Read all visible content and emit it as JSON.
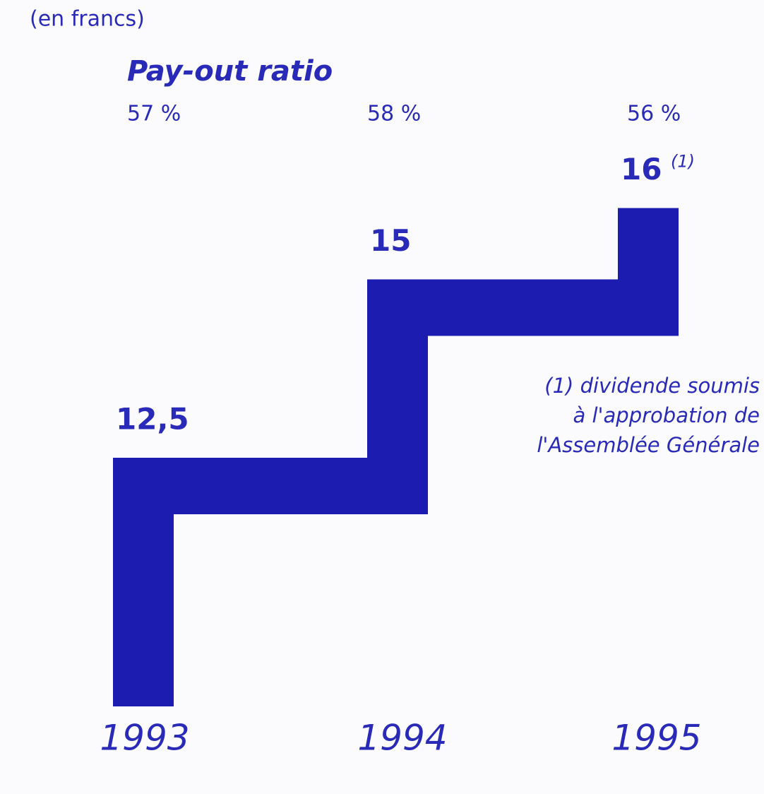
{
  "chart_data": {
    "type": "step",
    "subtitle": "(en francs)",
    "ratio_title": "Pay-out ratio",
    "ratios": [
      57,
      58,
      56
    ],
    "ratio_labels": [
      "57 %",
      "58 %",
      "56 %"
    ],
    "categories": [
      "1993",
      "1994",
      "1995"
    ],
    "values": [
      12.5,
      15,
      16
    ],
    "value_labels": [
      "12,5",
      "15",
      "16"
    ],
    "footnote_marker": "(1)",
    "footnote": [
      "(1) dividende soumis",
      "à l'approbation de",
      "l'Assemblée Générale"
    ],
    "color": "#1c1cb0"
  }
}
